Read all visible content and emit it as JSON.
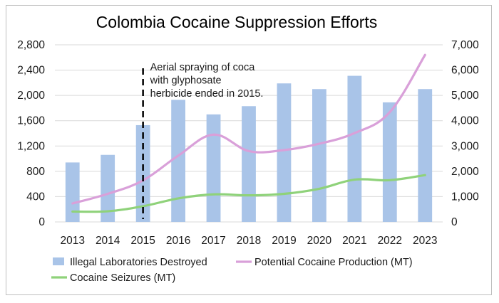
{
  "chart_data": {
    "type": "bar+line",
    "title": "Colombia Cocaine Suppression Efforts",
    "categories": [
      "2013",
      "2014",
      "2015",
      "2016",
      "2017",
      "2018",
      "2019",
      "2020",
      "2021",
      "2022",
      "2023"
    ],
    "y_left": {
      "ticks": [
        "0",
        "400",
        "800",
        "1,200",
        "1,600",
        "2,000",
        "2,400",
        "2,800"
      ],
      "range": [
        0,
        2800
      ]
    },
    "y_right": {
      "ticks": [
        "0",
        "1,000",
        "2,000",
        "3,000",
        "4,000",
        "5,000",
        "6,000",
        "7,000"
      ],
      "range": [
        0,
        7000
      ]
    },
    "grid": "horizontal",
    "legend_position": "bottom",
    "series": [
      {
        "name": "Illegal Laboratories Destroyed",
        "type": "bar",
        "axis": "left",
        "color": "#a9c4e8",
        "values": [
          940,
          1060,
          1530,
          1930,
          1700,
          1830,
          2190,
          2100,
          2310,
          1890,
          2100
        ]
      },
      {
        "name": "Potential Cocaine Production (MT)",
        "type": "line",
        "axis": "right",
        "color": "#d9a0d9",
        "values": [
          730,
          1110,
          1640,
          2620,
          3450,
          2800,
          2840,
          3090,
          3510,
          4340,
          6600
        ]
      },
      {
        "name": "Cocaine Seizures (MT)",
        "type": "line",
        "axis": "right",
        "color": "#8fd27a",
        "values": [
          410,
          420,
          620,
          930,
          1090,
          1050,
          1110,
          1310,
          1670,
          1650,
          1850
        ]
      }
    ],
    "annotation": {
      "at_category": "2015",
      "style": "dashed-vertical-line",
      "lines": [
        "Aerial spraying of coca",
        "with glyphosate",
        "herbicide ended in 2015."
      ]
    }
  }
}
